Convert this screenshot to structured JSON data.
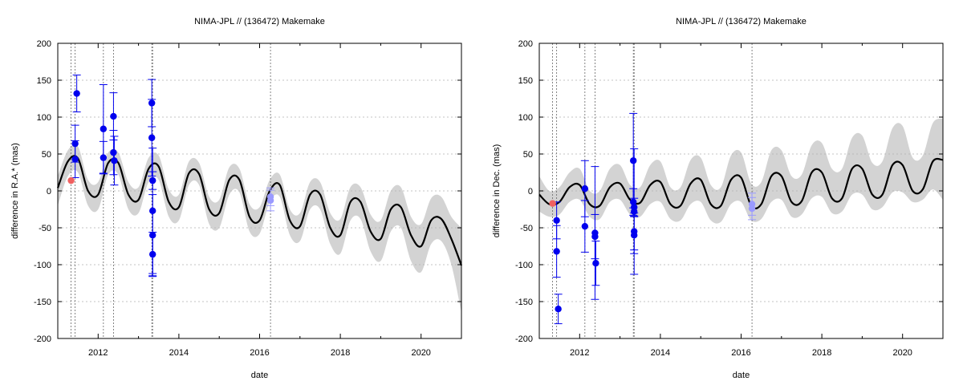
{
  "chart_data": [
    {
      "type": "line",
      "title": "NIMA-JPL // (136472) Makemake",
      "xlabel": "date",
      "ylabel": "difference in R.A.* (mas)",
      "xlim": [
        2011.0,
        2021.0
      ],
      "ylim": [
        -200,
        200
      ],
      "x_ticks": [
        2012,
        2014,
        2016,
        2018,
        2020
      ],
      "y_ticks": [
        -200,
        -150,
        -100,
        -50,
        0,
        50,
        100,
        150,
        200
      ],
      "grid": true,
      "observation_dates": [
        2011.33,
        2011.43,
        2012.13,
        2012.38,
        2013.33,
        2013.35,
        2016.27
      ],
      "series": [
        {
          "role": "prediction",
          "color": "#000000",
          "x": [
            2011.0,
            2011.25,
            2011.5,
            2011.75,
            2012.0,
            2012.25,
            2012.5,
            2012.75,
            2013.0,
            2013.25,
            2013.5,
            2013.75,
            2014.0,
            2014.25,
            2014.5,
            2014.75,
            2015.0,
            2015.25,
            2015.5,
            2015.75,
            2016.0,
            2016.25,
            2016.5,
            2016.75,
            2017.0,
            2017.25,
            2017.5,
            2017.75,
            2018.0,
            2018.25,
            2018.5,
            2018.75,
            2019.0,
            2019.25,
            2019.5,
            2019.75,
            2020.0,
            2020.25,
            2020.5,
            2020.75,
            2021.0
          ],
          "values": [
            4,
            40,
            44,
            0,
            -5,
            38,
            38,
            -5,
            -12,
            30,
            33,
            -15,
            -22,
            24,
            23,
            -25,
            -30,
            15,
            15,
            -35,
            -40,
            0,
            8,
            -40,
            -48,
            -5,
            -5,
            -50,
            -60,
            -15,
            -15,
            -55,
            -65,
            -25,
            -22,
            -60,
            -75,
            -40,
            -38,
            -65,
            -101
          ]
        },
        {
          "role": "uncertainty-band",
          "color": "#d3d3d3",
          "x": [
            2011.0,
            2011.25,
            2011.5,
            2011.75,
            2012.0,
            2012.25,
            2012.5,
            2012.75,
            2013.0,
            2013.25,
            2013.5,
            2013.75,
            2014.0,
            2014.25,
            2014.5,
            2014.75,
            2015.0,
            2015.25,
            2015.5,
            2015.75,
            2016.0,
            2016.25,
            2016.5,
            2016.75,
            2017.0,
            2017.25,
            2017.5,
            2017.75,
            2018.0,
            2018.25,
            2018.5,
            2018.75,
            2019.0,
            2019.25,
            2019.5,
            2019.75,
            2020.0,
            2020.25,
            2020.5,
            2020.75,
            2021.0
          ],
          "upper": [
            20,
            55,
            60,
            15,
            12,
            52,
            52,
            12,
            5,
            45,
            48,
            2,
            -5,
            40,
            38,
            -8,
            -12,
            32,
            30,
            -18,
            -22,
            15,
            22,
            -25,
            -30,
            12,
            12,
            -30,
            -38,
            5,
            5,
            -32,
            -40,
            0,
            5,
            -35,
            -45,
            -10,
            -8,
            -35,
            -50
          ],
          "lower": [
            -20,
            20,
            25,
            -20,
            -25,
            22,
            22,
            -25,
            -30,
            12,
            15,
            -35,
            -40,
            8,
            8,
            -45,
            -50,
            -5,
            -2,
            -55,
            -58,
            -15,
            -8,
            -60,
            -68,
            -25,
            -25,
            -72,
            -85,
            -40,
            -38,
            -82,
            -95,
            -55,
            -50,
            -95,
            -110,
            -72,
            -68,
            -100,
            -165
          ]
        },
        {
          "role": "measurements",
          "color": "#0000ee",
          "points": [
            {
              "x": 2011.43,
              "y": 43,
              "err": 25
            },
            {
              "x": 2011.43,
              "y": 64,
              "err": 25
            },
            {
              "x": 2011.47,
              "y": 132,
              "err": 25
            },
            {
              "x": 2012.13,
              "y": 84,
              "err": 60
            },
            {
              "x": 2012.13,
              "y": 45,
              "err": 22
            },
            {
              "x": 2012.38,
              "y": 101,
              "err": 32
            },
            {
              "x": 2012.38,
              "y": 52,
              "err": 30
            },
            {
              "x": 2012.4,
              "y": 41,
              "err": 33
            },
            {
              "x": 2013.33,
              "y": 119,
              "err": 32
            },
            {
              "x": 2013.33,
              "y": 72,
              "err": 52
            },
            {
              "x": 2013.35,
              "y": 14,
              "err": 12
            },
            {
              "x": 2013.35,
              "y": -27,
              "err": 85
            },
            {
              "x": 2013.35,
              "y": -60,
              "err": 55
            },
            {
              "x": 2013.35,
              "y": -86,
              "err": 30
            }
          ]
        },
        {
          "role": "measurements-2016",
          "color": "#9a9aff",
          "points": [
            {
              "x": 2016.27,
              "y": -8,
              "err": 12
            },
            {
              "x": 2016.27,
              "y": -13,
              "err": 14
            }
          ]
        },
        {
          "role": "measurements-red",
          "color": "#f06060",
          "points": [
            {
              "x": 2011.33,
              "y": 14,
              "err": 0
            }
          ]
        }
      ]
    },
    {
      "type": "line",
      "title": "NIMA-JPL // (136472) Makemake",
      "xlabel": "date",
      "ylabel": "difference in Dec. (mas)",
      "xlim": [
        2011.0,
        2021.0
      ],
      "ylim": [
        -200,
        200
      ],
      "x_ticks": [
        2012,
        2014,
        2016,
        2018,
        2020
      ],
      "y_ticks": [
        -200,
        -150,
        -100,
        -50,
        0,
        50,
        100,
        150,
        200
      ],
      "grid": true,
      "observation_dates": [
        2011.33,
        2011.43,
        2012.13,
        2012.38,
        2013.33,
        2013.35,
        2016.27
      ],
      "series": [
        {
          "role": "prediction",
          "color": "#000000",
          "x": [
            2011.0,
            2011.25,
            2011.5,
            2011.75,
            2012.0,
            2012.25,
            2012.5,
            2012.75,
            2013.0,
            2013.25,
            2013.5,
            2013.75,
            2014.0,
            2014.25,
            2014.5,
            2014.75,
            2015.0,
            2015.25,
            2015.5,
            2015.75,
            2016.0,
            2016.25,
            2016.5,
            2016.75,
            2017.0,
            2017.25,
            2017.5,
            2017.75,
            2018.0,
            2018.25,
            2018.5,
            2018.75,
            2019.0,
            2019.25,
            2019.5,
            2019.75,
            2020.0,
            2020.25,
            2020.5,
            2020.75,
            2021.0
          ],
          "values": [
            -5,
            -18,
            -15,
            5,
            8,
            -18,
            -20,
            5,
            10,
            -12,
            -16,
            8,
            12,
            -18,
            -20,
            10,
            15,
            -18,
            -20,
            15,
            18,
            -20,
            -18,
            20,
            20,
            -15,
            -14,
            25,
            25,
            -10,
            -10,
            30,
            30,
            -5,
            -5,
            35,
            35,
            0,
            2,
            40,
            42
          ]
        },
        {
          "role": "uncertainty-band",
          "color": "#d3d3d3",
          "x": [
            2011.0,
            2011.25,
            2011.5,
            2011.75,
            2012.0,
            2012.25,
            2012.5,
            2012.75,
            2013.0,
            2013.25,
            2013.5,
            2013.75,
            2014.0,
            2014.25,
            2014.5,
            2014.75,
            2015.0,
            2015.25,
            2015.5,
            2015.75,
            2016.0,
            2016.25,
            2016.5,
            2016.75,
            2017.0,
            2017.25,
            2017.5,
            2017.75,
            2018.0,
            2018.25,
            2018.5,
            2018.75,
            2019.0,
            2019.25,
            2019.5,
            2019.75,
            2020.0,
            2020.25,
            2020.5,
            2020.75,
            2021.0
          ],
          "upper": [
            20,
            0,
            5,
            25,
            30,
            0,
            0,
            30,
            35,
            8,
            5,
            35,
            40,
            5,
            5,
            42,
            45,
            8,
            5,
            48,
            52,
            10,
            12,
            55,
            55,
            20,
            22,
            62,
            65,
            30,
            30,
            72,
            75,
            38,
            40,
            85,
            88,
            45,
            48,
            92,
            98
          ],
          "lower": [
            -28,
            -35,
            -32,
            -15,
            -12,
            -35,
            -38,
            -15,
            -12,
            -32,
            -35,
            -18,
            -15,
            -38,
            -40,
            -18,
            -15,
            -40,
            -42,
            -18,
            -15,
            -40,
            -38,
            -15,
            -12,
            -35,
            -32,
            -10,
            -8,
            -30,
            -28,
            -5,
            -5,
            -25,
            -22,
            -2,
            -2,
            -15,
            -12,
            2,
            -12
          ]
        },
        {
          "role": "measurements",
          "color": "#0000ee",
          "points": [
            {
              "x": 2011.43,
              "y": -40,
              "err": 25
            },
            {
              "x": 2011.43,
              "y": -82,
              "err": 35
            },
            {
              "x": 2011.47,
              "y": -160,
              "err": 20
            },
            {
              "x": 2012.13,
              "y": 3,
              "err": 38
            },
            {
              "x": 2012.13,
              "y": -48,
              "err": 35
            },
            {
              "x": 2012.38,
              "y": -62,
              "err": 30
            },
            {
              "x": 2012.38,
              "y": -57,
              "err": 90
            },
            {
              "x": 2012.4,
              "y": -98,
              "err": 30
            },
            {
              "x": 2013.33,
              "y": 41,
              "err": 64
            },
            {
              "x": 2013.33,
              "y": -15,
              "err": 18
            },
            {
              "x": 2013.35,
              "y": -22,
              "err": 12
            },
            {
              "x": 2013.35,
              "y": -28,
              "err": 85
            },
            {
              "x": 2013.35,
              "y": -55,
              "err": 25
            },
            {
              "x": 2013.35,
              "y": -60,
              "err": 25
            }
          ]
        },
        {
          "role": "measurements-2016",
          "color": "#9a9aff",
          "points": [
            {
              "x": 2016.27,
              "y": -18,
              "err": 15
            },
            {
              "x": 2016.27,
              "y": -24,
              "err": 15
            }
          ]
        },
        {
          "role": "measurements-red",
          "color": "#f06060",
          "points": [
            {
              "x": 2011.33,
              "y": -17,
              "err": 0
            }
          ]
        }
      ]
    }
  ]
}
